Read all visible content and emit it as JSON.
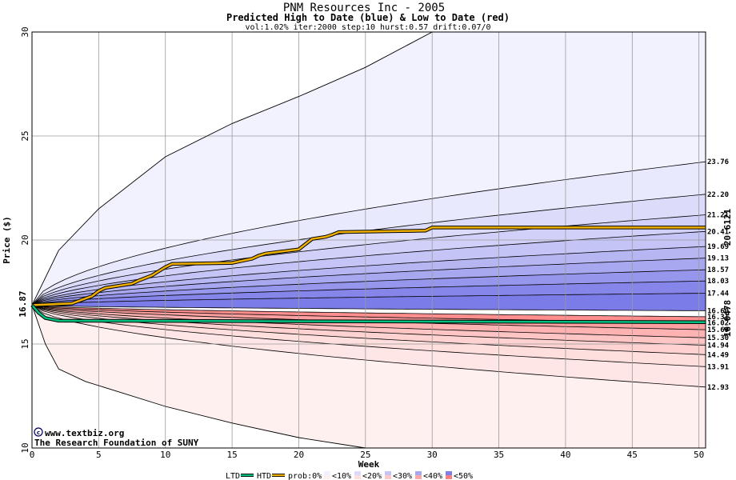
{
  "chart_data": {
    "type": "area",
    "title": "PNM Resources Inc - 2005",
    "subtitle": "Predicted High to Date (blue) &  Low to Date (red)",
    "params": "vol:1.02% iter:2000 step:10 hurst:0.57 drift:0.07/0",
    "xlabel": "Week",
    "ylabel": "Price ($)",
    "xlim": [
      0,
      50.5
    ],
    "ylim": [
      10,
      30
    ],
    "xticks": [
      "0",
      "5",
      "10",
      "15",
      "20",
      "25",
      "30",
      "35",
      "40",
      "45",
      "50"
    ],
    "yticks": [
      "10",
      "15",
      "20",
      "25",
      "30"
    ],
    "start_price": 16.87,
    "start_label": "16.87",
    "htd_final_label": "20.6121",
    "ltd_final_label": "16.0478",
    "watermark_line1": "www.textbiz.org",
    "watermark_line2": "The Research Foundation of SUNY",
    "upper_outer": {
      "x": [
        0,
        2,
        5,
        10,
        15,
        20,
        25,
        30
      ],
      "y": [
        16.87,
        19.5,
        21.5,
        24,
        25.6,
        26.9,
        28.3,
        30.0
      ]
    },
    "lower_outer": {
      "x": [
        0,
        1,
        2,
        4,
        10,
        15,
        20,
        25
      ],
      "y": [
        16.87,
        15.0,
        13.8,
        13.2,
        12.0,
        11.2,
        10.5,
        10.0
      ]
    },
    "upper_bands": [
      {
        "label": "23.76",
        "end": 23.76
      },
      {
        "label": "22.20",
        "end": 22.2
      },
      {
        "label": "21.21",
        "end": 21.21
      },
      {
        "label": "20.41",
        "end": 20.41
      },
      {
        "label": "19.69",
        "end": 19.69
      },
      {
        "label": "19.13",
        "end": 19.13
      },
      {
        "label": "18.57",
        "end": 18.57
      },
      {
        "label": "18.03",
        "end": 18.03
      },
      {
        "label": "17.44",
        "end": 17.44
      },
      {
        "label": "16.60",
        "end": 16.6
      }
    ],
    "lower_bands": [
      {
        "label": "16.31",
        "end": 16.31
      },
      {
        "label": "16.02",
        "end": 16.02
      },
      {
        "label": "15.69",
        "end": 15.69
      },
      {
        "label": "15.30",
        "end": 15.3
      },
      {
        "label": "14.94",
        "end": 14.94
      },
      {
        "label": "14.49",
        "end": 14.49
      },
      {
        "label": "13.91",
        "end": 13.91
      },
      {
        "label": "12.93",
        "end": 12.93
      }
    ],
    "htd_line": {
      "name": "HTD",
      "color": "#f0b000",
      "x": [
        0,
        3,
        4.5,
        5,
        5.5,
        6,
        7.5,
        8,
        9,
        9.5,
        10,
        10.5,
        15,
        16.5,
        17,
        17.5,
        20,
        20.5,
        21,
        22,
        22.5,
        23,
        29.5,
        30,
        50.5
      ],
      "y": [
        16.87,
        16.95,
        17.3,
        17.55,
        17.7,
        17.75,
        17.9,
        18.05,
        18.3,
        18.5,
        18.7,
        18.85,
        18.9,
        19.1,
        19.25,
        19.35,
        19.55,
        19.8,
        20.05,
        20.15,
        20.25,
        20.38,
        20.45,
        20.6,
        20.6
      ]
    },
    "ltd_line": {
      "name": "LTD",
      "color": "#00c080",
      "x": [
        0,
        0.5,
        1,
        2,
        50.5
      ],
      "y": [
        16.87,
        16.5,
        16.25,
        16.12,
        16.05
      ]
    },
    "legend": [
      {
        "label": "LTD",
        "type": "line",
        "color": "#00c080"
      },
      {
        "label": "HTD",
        "type": "line",
        "color": "#f0b000"
      },
      {
        "label": "prob:0%",
        "type": "text"
      },
      {
        "label": "<10%",
        "type": "swatch",
        "upper": "#f2f2ff",
        "lower": "#fff0f0"
      },
      {
        "label": "<20%",
        "type": "swatch",
        "upper": "#dcdcfa",
        "lower": "#ffdede"
      },
      {
        "label": "<30%",
        "type": "swatch",
        "upper": "#c4c4f6",
        "lower": "#ffc8c8"
      },
      {
        "label": "<40%",
        "type": "swatch",
        "upper": "#a8a8f0",
        "lower": "#ffa8a8"
      },
      {
        "label": "<50%",
        "type": "swatch",
        "upper": "#7e7eea",
        "lower": "#ff8080"
      }
    ],
    "grid": true,
    "legend_position": "bottom"
  }
}
